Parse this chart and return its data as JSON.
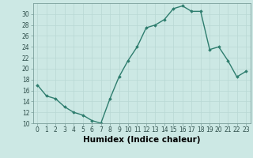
{
  "x": [
    0,
    1,
    2,
    3,
    4,
    5,
    6,
    7,
    8,
    9,
    10,
    11,
    12,
    13,
    14,
    15,
    16,
    17,
    18,
    19,
    20,
    21,
    22,
    23
  ],
  "y": [
    17,
    15,
    14.5,
    13,
    12,
    11.5,
    10.5,
    10,
    14.5,
    18.5,
    21.5,
    24,
    27.5,
    28,
    29,
    31,
    31.5,
    30.5,
    30.5,
    23.5,
    24,
    21.5,
    18.5,
    19.5
  ],
  "line_color": "#2e7d6e",
  "marker": "D",
  "marker_size": 1.8,
  "bg_color": "#cce8e4",
  "grid_color": "#b8d8d4",
  "xlabel": "Humidex (Indice chaleur)",
  "xlim": [
    -0.5,
    23.5
  ],
  "ylim": [
    10,
    32
  ],
  "yticks": [
    10,
    12,
    14,
    16,
    18,
    20,
    22,
    24,
    26,
    28,
    30
  ],
  "xticks": [
    0,
    1,
    2,
    3,
    4,
    5,
    6,
    7,
    8,
    9,
    10,
    11,
    12,
    13,
    14,
    15,
    16,
    17,
    18,
    19,
    20,
    21,
    22,
    23
  ],
  "tick_fontsize": 5.5,
  "xlabel_fontsize": 7.5,
  "line_width": 1.0
}
